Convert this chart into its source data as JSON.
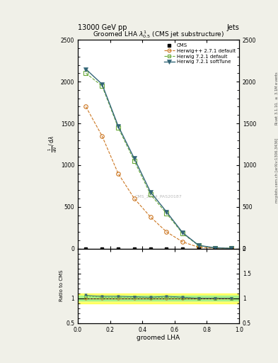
{
  "title": "Groomed LHA $\\lambda^{1}_{0.5}$ (CMS jet substructure)",
  "top_title_left": "13000 GeV pp",
  "top_title_right": "Jets",
  "xlabel": "groomed LHA",
  "ylabel_ratio": "Ratio to CMS",
  "right_label_top": "Rivet 3.1.10, $\\geq$ 3.1M events",
  "right_label_bot": "mcplots.cern.ch [arXiv:1306.3436]",
  "watermark": "CMS_2024_PAS20187",
  "cms_x": [
    0.05,
    0.15,
    0.25,
    0.35,
    0.45,
    0.55,
    0.65,
    0.75,
    0.85,
    0.95
  ],
  "cms_y": [
    0,
    0,
    0,
    0,
    0,
    0,
    0,
    0,
    0,
    0
  ],
  "hw271_x": [
    0.05,
    0.15,
    0.25,
    0.35,
    0.45,
    0.55,
    0.65,
    0.75,
    0.85,
    0.95
  ],
  "hw271_y": [
    1700,
    1350,
    900,
    600,
    380,
    200,
    80,
    15,
    5,
    2
  ],
  "hw721d_x": [
    0.05,
    0.15,
    0.25,
    0.35,
    0.45,
    0.55,
    0.65,
    0.75,
    0.85,
    0.95
  ],
  "hw721d_y": [
    2100,
    1950,
    1450,
    1050,
    650,
    420,
    180,
    35,
    8,
    2
  ],
  "hw721s_x": [
    0.05,
    0.15,
    0.25,
    0.35,
    0.45,
    0.55,
    0.65,
    0.75,
    0.85,
    0.95
  ],
  "hw721s_y": [
    2150,
    1970,
    1470,
    1080,
    680,
    440,
    190,
    38,
    9,
    2
  ],
  "ratio_hw271_y": [
    1.0,
    1.0,
    1.0,
    1.0,
    1.0,
    1.0,
    1.0,
    1.0,
    1.0,
    1.0
  ],
  "ratio_hw721d_y": [
    1.04,
    1.02,
    1.02,
    1.02,
    1.01,
    1.02,
    1.01,
    1.0,
    1.0,
    1.0
  ],
  "ratio_hw721s_y": [
    1.06,
    1.04,
    1.04,
    1.03,
    1.02,
    1.04,
    1.02,
    1.0,
    1.0,
    1.0
  ],
  "ylim_main": [
    0,
    2500
  ],
  "ylim_ratio": [
    0.5,
    2.0
  ],
  "xlim": [
    0.0,
    1.0
  ],
  "yticks_main": [
    0,
    500,
    1000,
    1500,
    2000,
    2500
  ],
  "yticks_ratio": [
    0.5,
    1.0,
    1.5,
    2.0
  ],
  "color_cms": "#000000",
  "color_hw271": "#cc7722",
  "color_hw721d": "#6aaa3a",
  "color_hw721s": "#336677",
  "bg_color": "#f0f0e8",
  "panel_bg": "#ffffff"
}
